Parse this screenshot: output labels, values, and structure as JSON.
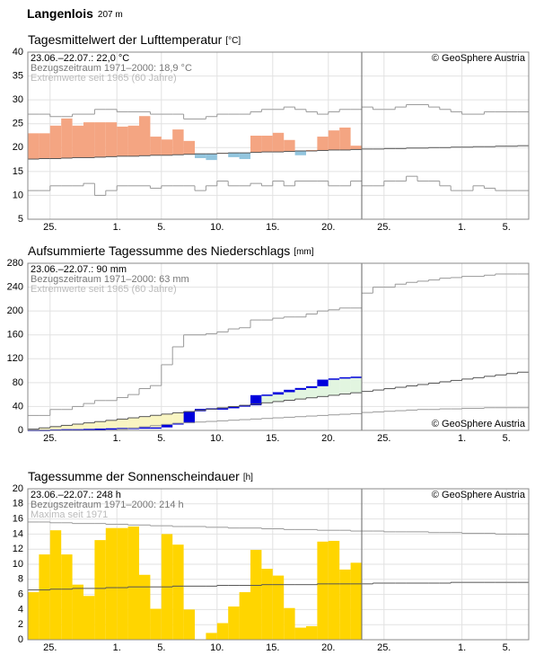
{
  "header": {
    "station": "Langenlois",
    "elevation": "207 m"
  },
  "chart_data": [
    {
      "type": "anomaly_bar",
      "title": "Tagesmittelwert der Lufttemperatur",
      "unit": "[°C]",
      "annotations": [
        "23.06.–22.07.: 22,0 °C",
        "Bezugszeitraum 1971–2000: 18,9 °C",
        "Extremwerte seit 1965 (60 Jahre)"
      ],
      "credit": "© GeoSphere Austria",
      "credit_corner": "top-right",
      "ylim": [
        5,
        40
      ],
      "yticks": [
        5,
        10,
        15,
        20,
        25,
        30,
        35,
        40
      ],
      "xlim": [
        0,
        45
      ],
      "xticks": [
        {
          "value": 2,
          "label": "25."
        },
        {
          "value": 8,
          "label": "1."
        },
        {
          "value": 12,
          "label": "5."
        },
        {
          "value": 17,
          "label": "10."
        },
        {
          "value": 22,
          "label": "15."
        },
        {
          "value": 27,
          "label": "20."
        },
        {
          "value": 32,
          "label": "25."
        },
        {
          "value": 39,
          "label": "1."
        },
        {
          "value": 43,
          "label": "5."
        }
      ],
      "grid": true,
      "above_color": "#f4a582",
      "below_color": "#92c5de",
      "x": [
        0,
        1,
        2,
        3,
        4,
        5,
        6,
        7,
        8,
        9,
        10,
        11,
        12,
        13,
        14,
        15,
        16,
        17,
        18,
        19,
        20,
        21,
        22,
        23,
        24,
        25,
        26,
        27,
        28,
        29,
        30,
        31,
        32,
        33,
        34,
        35,
        36,
        37,
        38,
        39,
        40,
        41,
        42,
        43,
        44
      ],
      "observed": {
        "values": [
          23.0,
          23.0,
          24.6,
          26.1,
          24.6,
          25.3,
          25.3,
          25.3,
          24.4,
          24.6,
          26.6,
          22.3,
          21.7,
          23.8,
          21.4,
          17.8,
          17.4,
          18.9,
          18.0,
          17.6,
          22.5,
          22.5,
          23.1,
          21.6,
          18.4,
          19.5,
          22.3,
          23.6,
          24.2,
          20.4,
          null,
          null,
          null,
          null,
          null,
          null,
          null,
          null,
          null,
          null,
          null,
          null,
          null,
          null,
          null
        ]
      },
      "normal": {
        "color": "#555555",
        "values": [
          17.6,
          17.7,
          17.7,
          17.8,
          17.9,
          17.9,
          18.0,
          18.1,
          18.2,
          18.2,
          18.3,
          18.4,
          18.4,
          18.5,
          18.6,
          18.7,
          18.7,
          18.8,
          18.9,
          18.9,
          19.0,
          19.1,
          19.1,
          19.2,
          19.3,
          19.3,
          19.4,
          19.5,
          19.5,
          19.6,
          19.7,
          19.7,
          19.8,
          19.8,
          19.9,
          19.9,
          20.0,
          20.0,
          20.1,
          20.1,
          20.2,
          20.2,
          20.3,
          20.3,
          20.4
        ]
      },
      "upper": {
        "color": "#999999",
        "values": [
          27,
          27,
          26.5,
          26.5,
          27,
          27,
          28,
          28,
          27.5,
          27.5,
          27.5,
          27,
          27,
          27,
          26,
          26,
          26.5,
          27,
          27,
          27,
          27.5,
          28,
          28,
          28.5,
          28,
          27.5,
          27,
          27.5,
          28,
          28,
          28.5,
          28,
          28,
          28.5,
          29,
          29,
          28.5,
          28,
          27.5,
          27,
          27,
          27.5,
          27.5,
          27.5,
          27.5
        ]
      },
      "lower": {
        "color": "#999999",
        "values": [
          11,
          11,
          12,
          12,
          12,
          12.5,
          10,
          11,
          12,
          12,
          12,
          11.5,
          12,
          12,
          12,
          11,
          12,
          13,
          12,
          12,
          12.5,
          12,
          13,
          12,
          13,
          13,
          13,
          12,
          12,
          13,
          12,
          12,
          13,
          13,
          14,
          13,
          13,
          12,
          11,
          11,
          12,
          11.5,
          11,
          11,
          11
        ]
      }
    },
    {
      "type": "cumulative_area",
      "title": "Aufsummierte Tagessumme des Niederschlags",
      "unit": "[mm]",
      "annotations": [
        "23.06.–22.07.: 90 mm",
        "Bezugszeitraum 1971–2000: 63 mm",
        "Extremwerte seit 1965 (60 Jahre)"
      ],
      "credit": "© GeoSphere Austria",
      "credit_corner": "bottom-right",
      "ylim": [
        0,
        280
      ],
      "yticks": [
        0,
        40,
        80,
        120,
        160,
        200,
        240,
        280
      ],
      "xlim": [
        0,
        45
      ],
      "xticks": [
        {
          "value": 2,
          "label": "25."
        },
        {
          "value": 8,
          "label": "1."
        },
        {
          "value": 12,
          "label": "5."
        },
        {
          "value": 17,
          "label": "10."
        },
        {
          "value": 22,
          "label": "15."
        },
        {
          "value": 27,
          "label": "20."
        },
        {
          "value": 32,
          "label": "25."
        },
        {
          "value": 39,
          "label": "1."
        },
        {
          "value": 43,
          "label": "5."
        }
      ],
      "grid": true,
      "above_color": "#e2f5e0",
      "below_color": "#f9f5c2",
      "x": [
        0,
        1,
        2,
        3,
        4,
        5,
        6,
        7,
        8,
        9,
        10,
        11,
        12,
        13,
        14,
        15,
        16,
        17,
        18,
        19,
        20,
        21,
        22,
        23,
        24,
        25,
        26,
        27,
        28,
        29,
        30,
        31,
        32,
        33,
        34,
        35,
        36,
        37,
        38,
        39,
        40,
        41,
        42,
        43,
        44
      ],
      "observed": {
        "color": "#0000dd",
        "values": [
          1,
          1,
          1.5,
          2,
          2,
          2.5,
          3,
          3.5,
          4,
          4.5,
          5,
          5,
          10,
          12,
          32,
          36,
          37,
          37,
          40,
          42,
          59,
          60,
          64,
          68,
          71,
          74,
          85,
          87,
          89,
          90,
          null,
          null,
          null,
          null,
          null,
          null,
          null,
          null,
          null,
          null,
          null,
          null,
          null,
          null,
          null
        ]
      },
      "normal": {
        "color": "#555555",
        "values": [
          2.1,
          4.2,
          6.3,
          8.4,
          10.5,
          12.6,
          14.7,
          16.8,
          18.9,
          21,
          23.1,
          25.2,
          27.3,
          29.4,
          31.5,
          33.6,
          35.7,
          37.8,
          39.9,
          42,
          44.1,
          46.2,
          48.3,
          50.4,
          52.5,
          54.6,
          56.7,
          58.8,
          60.9,
          63,
          65.3,
          67.6,
          69.9,
          72.2,
          74.5,
          76.8,
          79.1,
          81.4,
          83.7,
          86,
          88.3,
          90.6,
          92.9,
          95.2,
          97.5
        ]
      },
      "upper": {
        "color": "#999999",
        "values": [
          25,
          25,
          35,
          35,
          40,
          45,
          50,
          50,
          55,
          60,
          70,
          75,
          110,
          140,
          160,
          160,
          162,
          165,
          170,
          172,
          185,
          185,
          188,
          190,
          190,
          195,
          200,
          202,
          205,
          205,
          230,
          240,
          240,
          245,
          248,
          250,
          252,
          255,
          256,
          258,
          258,
          260,
          262,
          262,
          262
        ]
      },
      "lower": {
        "color": "#999999",
        "values": [
          0,
          0,
          0,
          0,
          0,
          0,
          0,
          0,
          2,
          4,
          6,
          8,
          10,
          12,
          13,
          14,
          15,
          16,
          17,
          18,
          19,
          20,
          21,
          22,
          23,
          24,
          25,
          26,
          27,
          28,
          30,
          31,
          32,
          33,
          34,
          35,
          35,
          36,
          36,
          37,
          37,
          38,
          38,
          38,
          38
        ]
      }
    },
    {
      "type": "bar",
      "title": "Tagessumme der Sonnenscheindauer",
      "unit": "[h]",
      "annotations": [
        "23.06.–22.07.: 248 h",
        "Bezugszeitraum 1971–2000: 214 h",
        "Maxima seit 1971"
      ],
      "credit": "© GeoSphere Austria",
      "credit_corner": "top-right",
      "ylim": [
        0,
        20
      ],
      "yticks": [
        0,
        2,
        4,
        6,
        8,
        10,
        12,
        14,
        16,
        18,
        20
      ],
      "xlim": [
        0,
        45
      ],
      "xticks": [
        {
          "value": 2,
          "label": "25."
        },
        {
          "value": 8,
          "label": "1."
        },
        {
          "value": 12,
          "label": "5."
        },
        {
          "value": 17,
          "label": "10."
        },
        {
          "value": 22,
          "label": "15."
        },
        {
          "value": 27,
          "label": "20."
        },
        {
          "value": 32,
          "label": "25."
        },
        {
          "value": 39,
          "label": "1."
        },
        {
          "value": 43,
          "label": "5."
        }
      ],
      "grid": true,
      "x": [
        0,
        1,
        2,
        3,
        4,
        5,
        6,
        7,
        8,
        9,
        10,
        11,
        12,
        13,
        14,
        15,
        16,
        17,
        18,
        19,
        20,
        21,
        22,
        23,
        24,
        25,
        26,
        27,
        28,
        29,
        30,
        31,
        32,
        33,
        34,
        35,
        36,
        37,
        38,
        39,
        40,
        41,
        42,
        43,
        44
      ],
      "observed": {
        "color": "#ffd500",
        "values": [
          6.3,
          11.3,
          14.5,
          11.3,
          7.3,
          5.8,
          13.2,
          14.8,
          14.8,
          15.0,
          8.6,
          4.1,
          14.0,
          12.6,
          4.0,
          0,
          0.9,
          2.2,
          4.4,
          6.3,
          11.9,
          9.4,
          8.5,
          4.2,
          1.6,
          1.8,
          13.0,
          13.1,
          9.3,
          10.2,
          null,
          null,
          null,
          null,
          null,
          null,
          null,
          null,
          null,
          null,
          null,
          null,
          null,
          null,
          null
        ]
      },
      "normal": {
        "color": "#555555",
        "values": [
          6.6,
          6.6,
          6.7,
          6.7,
          6.8,
          6.8,
          6.8,
          6.9,
          6.9,
          7.0,
          7.0,
          7.0,
          7.0,
          7.1,
          7.1,
          7.1,
          7.1,
          7.2,
          7.2,
          7.2,
          7.2,
          7.3,
          7.3,
          7.3,
          7.3,
          7.3,
          7.4,
          7.4,
          7.4,
          7.4,
          7.4,
          7.5,
          7.5,
          7.5,
          7.5,
          7.5,
          7.5,
          7.5,
          7.6,
          7.6,
          7.6,
          7.6,
          7.6,
          7.6,
          7.6
        ]
      },
      "upper": {
        "color": "#999999",
        "values": [
          15.6,
          15.6,
          15.5,
          15.5,
          15.4,
          15.4,
          15.4,
          15.3,
          15.3,
          15.2,
          15.2,
          15.1,
          15.1,
          15.0,
          15.0,
          15.0,
          14.9,
          14.9,
          14.8,
          14.8,
          14.8,
          14.7,
          14.7,
          14.6,
          14.6,
          14.6,
          14.5,
          14.5,
          14.5,
          14.4,
          14.4,
          14.4,
          14.3,
          14.3,
          14.3,
          14.3,
          14.2,
          14.2,
          14.2,
          14.1,
          14.1,
          14.1,
          14.0,
          14.0,
          14.0
        ]
      }
    }
  ]
}
